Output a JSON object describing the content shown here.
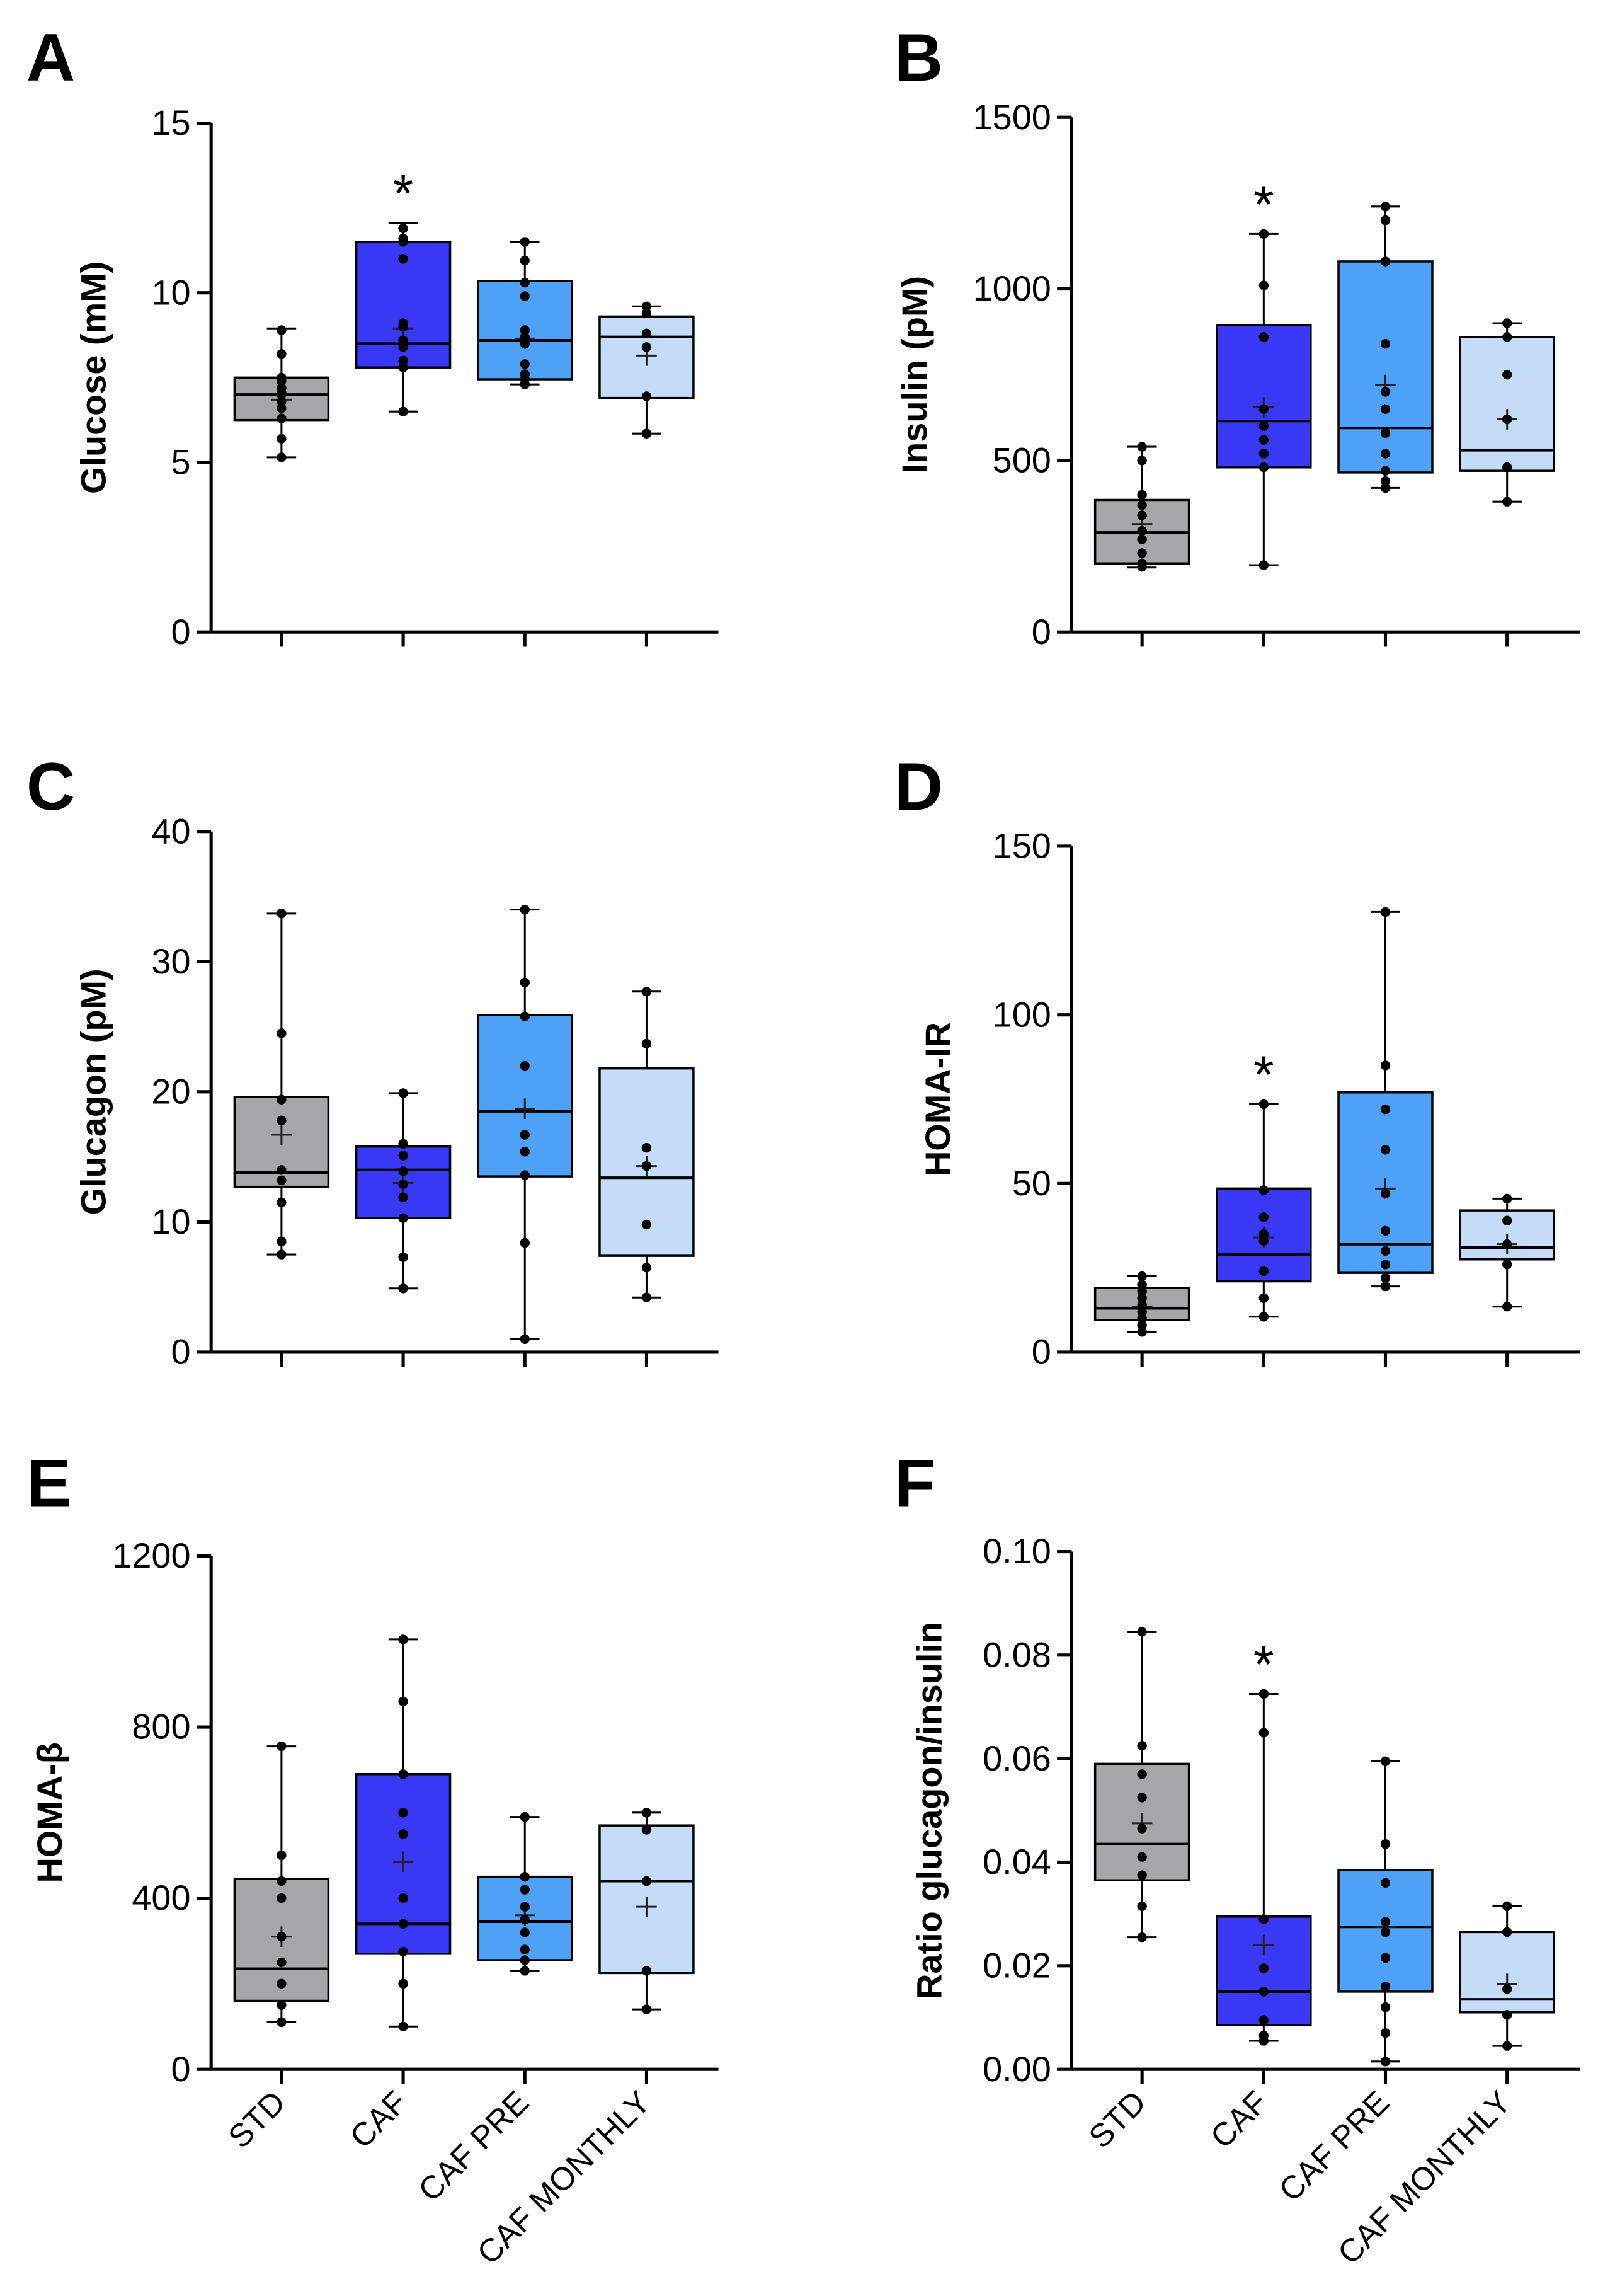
{
  "categories": [
    "STD",
    "CAF",
    "CAF PRE",
    "CAF MONTHLY"
  ],
  "colors": {
    "STD": "#a6a6a8",
    "CAF": "#3838f5",
    "CAF PRE": "#4da2f7",
    "CAF MONTHLY": "#c4dcf7",
    "axis": "#000000"
  },
  "chart_data": [
    {
      "panel": "A",
      "type": "box",
      "ylabel": "Glucose (mM)",
      "ylim": [
        0,
        15
      ],
      "yticks": [
        0,
        5,
        10,
        15
      ],
      "ytick_labels": [
        "0",
        "5",
        "10",
        "15"
      ],
      "categories": [
        "STD",
        "CAF",
        "CAF PRE",
        "CAF MONTHLY"
      ],
      "significance": [
        "",
        "*",
        "",
        ""
      ],
      "boxes": [
        {
          "group": "STD",
          "min": 5.15,
          "q1": 6.25,
          "median": 7.0,
          "q3": 7.5,
          "max": 8.95,
          "mean": 6.85,
          "points": [
            5.15,
            5.7,
            6.3,
            6.6,
            6.8,
            7.0,
            7.05,
            7.2,
            7.4,
            7.5,
            8.2,
            8.9
          ]
        },
        {
          "group": "CAF",
          "min": 6.5,
          "q1": 7.8,
          "median": 8.5,
          "q3": 11.5,
          "max": 12.05,
          "mean": 8.95,
          "points": [
            6.5,
            7.8,
            8.0,
            8.4,
            8.6,
            9.0,
            9.1,
            11.0,
            11.5,
            11.6,
            11.9
          ]
        },
        {
          "group": "CAF PRE",
          "min": 7.3,
          "q1": 7.45,
          "median": 8.6,
          "q3": 10.35,
          "max": 11.5,
          "mean": 8.65,
          "points": [
            7.3,
            7.45,
            7.6,
            7.9,
            8.5,
            8.7,
            8.9,
            9.9,
            10.3,
            10.95,
            11.5
          ]
        },
        {
          "group": "CAF MONTHLY",
          "min": 5.85,
          "q1": 6.9,
          "median": 8.7,
          "q3": 9.3,
          "max": 9.6,
          "mean": 8.15,
          "points": [
            5.85,
            6.95,
            8.4,
            8.8,
            9.4,
            9.6
          ]
        }
      ]
    },
    {
      "panel": "B",
      "type": "box",
      "ylabel": "Insulin (pM)",
      "ylim": [
        0,
        1500
      ],
      "yticks": [
        0,
        500,
        1000,
        1500
      ],
      "ytick_labels": [
        "0",
        "500",
        "1000",
        "1500"
      ],
      "categories": [
        "STD",
        "CAF",
        "CAF PRE",
        "CAF MONTHLY"
      ],
      "significance": [
        "",
        "*",
        "",
        ""
      ],
      "boxes": [
        {
          "group": "STD",
          "min": 188,
          "q1": 200,
          "median": 290,
          "q3": 385,
          "max": 540,
          "mean": 315,
          "points": [
            190,
            200,
            230,
            270,
            295,
            340,
            370,
            400,
            500,
            540
          ]
        },
        {
          "group": "CAF",
          "min": 195,
          "q1": 480,
          "median": 615,
          "q3": 895,
          "max": 1160,
          "mean": 655,
          "points": [
            195,
            480,
            520,
            560,
            600,
            650,
            860,
            1010,
            1160
          ]
        },
        {
          "group": "CAF PRE",
          "min": 420,
          "q1": 465,
          "median": 595,
          "q3": 1080,
          "max": 1240,
          "mean": 720,
          "points": [
            420,
            440,
            470,
            520,
            580,
            650,
            700,
            840,
            1080,
            1200,
            1240
          ]
        },
        {
          "group": "CAF MONTHLY",
          "min": 380,
          "q1": 470,
          "median": 530,
          "q3": 860,
          "max": 900,
          "mean": 620,
          "points": [
            380,
            480,
            620,
            750,
            860,
            900
          ]
        }
      ]
    },
    {
      "panel": "C",
      "type": "box",
      "ylabel": "Glucagon (pM)",
      "ylim": [
        0,
        40
      ],
      "yticks": [
        0,
        10,
        20,
        30,
        40
      ],
      "ytick_labels": [
        "0",
        "10",
        "20",
        "30",
        "40"
      ],
      "categories": [
        "STD",
        "CAF",
        "CAF PRE",
        "CAF MONTHLY"
      ],
      "significance": [
        "",
        "",
        "",
        ""
      ],
      "boxes": [
        {
          "group": "STD",
          "min": 7.5,
          "q1": 12.7,
          "median": 13.8,
          "q3": 19.6,
          "max": 33.7,
          "mean": 16.7,
          "points": [
            7.5,
            8.5,
            11.5,
            13.2,
            14.0,
            17.8,
            19.4,
            24.5,
            33.7
          ]
        },
        {
          "group": "CAF",
          "min": 4.9,
          "q1": 10.3,
          "median": 14.0,
          "q3": 15.8,
          "max": 19.9,
          "mean": 13.0,
          "points": [
            4.9,
            7.3,
            10.3,
            11.9,
            12.9,
            13.9,
            15.1,
            16.0,
            19.9
          ]
        },
        {
          "group": "CAF PRE",
          "min": 1.0,
          "q1": 13.5,
          "median": 18.5,
          "q3": 25.9,
          "max": 34.0,
          "mean": 18.7,
          "points": [
            1.0,
            8.4,
            13.6,
            15.4,
            16.7,
            22.0,
            25.8,
            28.4,
            34.0
          ]
        },
        {
          "group": "CAF MONTHLY",
          "min": 4.2,
          "q1": 7.4,
          "median": 13.4,
          "q3": 21.8,
          "max": 27.7,
          "mean": 14.3,
          "points": [
            4.2,
            6.5,
            9.8,
            14.3,
            15.7,
            23.7,
            27.7
          ]
        }
      ]
    },
    {
      "panel": "D",
      "type": "box",
      "ylabel": "HOMA-IR",
      "ylim": [
        0,
        150
      ],
      "yticks": [
        0,
        50,
        100,
        150
      ],
      "ytick_labels": [
        "0",
        "50",
        "100",
        "150"
      ],
      "categories": [
        "STD",
        "CAF",
        "CAF PRE",
        "CAF MONTHLY"
      ],
      "significance": [
        "",
        "*",
        "",
        ""
      ],
      "boxes": [
        {
          "group": "STD",
          "min": 6,
          "q1": 9.5,
          "median": 13,
          "q3": 19,
          "max": 22.5,
          "mean": 13.5,
          "points": [
            6,
            8,
            10,
            12,
            14,
            16,
            18,
            20,
            22.5
          ]
        },
        {
          "group": "CAF",
          "min": 10.5,
          "q1": 21,
          "median": 29,
          "q3": 48.5,
          "max": 73.5,
          "mean": 34,
          "points": [
            10.5,
            16,
            24,
            33,
            35,
            40,
            48,
            73.5
          ]
        },
        {
          "group": "CAF PRE",
          "min": 19.5,
          "q1": 23.5,
          "median": 32,
          "q3": 77,
          "max": 130.5,
          "mean": 48.5,
          "points": [
            19.5,
            22,
            26,
            30,
            36,
            47,
            60,
            72,
            85,
            130.5
          ]
        },
        {
          "group": "CAF MONTHLY",
          "min": 13.5,
          "q1": 27.5,
          "median": 31,
          "q3": 42,
          "max": 45.5,
          "mean": 32,
          "points": [
            13.5,
            26,
            32,
            39,
            45.5
          ]
        }
      ]
    },
    {
      "panel": "E",
      "type": "box",
      "ylabel": "HOMA-β",
      "ylim": [
        0,
        1200
      ],
      "yticks": [
        0,
        400,
        800,
        1200
      ],
      "ytick_labels": [
        "0",
        "400",
        "800",
        "1200"
      ],
      "categories": [
        "STD",
        "CAF",
        "CAF PRE",
        "CAF MONTHLY"
      ],
      "significance": [
        "",
        "",
        "",
        ""
      ],
      "boxes": [
        {
          "group": "STD",
          "min": 110,
          "q1": 160,
          "median": 235,
          "q3": 445,
          "max": 755,
          "mean": 310,
          "points": [
            110,
            150,
            200,
            250,
            310,
            400,
            440,
            500,
            755
          ]
        },
        {
          "group": "CAF",
          "min": 100,
          "q1": 270,
          "median": 340,
          "q3": 690,
          "max": 1005,
          "mean": 485,
          "points": [
            100,
            200,
            275,
            340,
            400,
            550,
            600,
            690,
            860,
            1005
          ]
        },
        {
          "group": "CAF PRE",
          "min": 230,
          "q1": 255,
          "median": 345,
          "q3": 450,
          "max": 590,
          "mean": 360,
          "points": [
            230,
            255,
            280,
            320,
            350,
            380,
            420,
            450,
            590
          ]
        },
        {
          "group": "CAF MONTHLY",
          "min": 140,
          "q1": 225,
          "median": 440,
          "q3": 570,
          "max": 600,
          "mean": 380,
          "points": [
            140,
            230,
            440,
            560,
            600
          ]
        }
      ]
    },
    {
      "panel": "F",
      "type": "box",
      "ylabel": "Ratio glucagon/insulin",
      "ylim": [
        0,
        0.1
      ],
      "yticks": [
        0,
        0.02,
        0.04,
        0.06,
        0.08,
        0.1
      ],
      "ytick_labels": [
        "0.00",
        "0.02",
        "0.04",
        "0.06",
        "0.08",
        "0.10"
      ],
      "categories": [
        "STD",
        "CAF",
        "CAF PRE",
        "CAF MONTHLY"
      ],
      "significance": [
        "",
        "*",
        "",
        ""
      ],
      "boxes": [
        {
          "group": "STD",
          "min": 0.0255,
          "q1": 0.0365,
          "median": 0.0435,
          "q3": 0.059,
          "max": 0.0845,
          "mean": 0.0475,
          "points": [
            0.0255,
            0.0315,
            0.0375,
            0.041,
            0.0465,
            0.0525,
            0.057,
            0.0625,
            0.0845
          ]
        },
        {
          "group": "CAF",
          "min": 0.0055,
          "q1": 0.0085,
          "median": 0.015,
          "q3": 0.0295,
          "max": 0.0725,
          "mean": 0.024,
          "points": [
            0.0055,
            0.0065,
            0.0095,
            0.015,
            0.0195,
            0.029,
            0.065,
            0.0725
          ]
        },
        {
          "group": "CAF PRE",
          "min": 0.0015,
          "q1": 0.015,
          "median": 0.0275,
          "q3": 0.0385,
          "max": 0.0595,
          "mean": 0.0275,
          "points": [
            0.0015,
            0.007,
            0.012,
            0.016,
            0.0215,
            0.0265,
            0.0285,
            0.036,
            0.0435,
            0.0595
          ]
        },
        {
          "group": "CAF MONTHLY",
          "min": 0.0045,
          "q1": 0.011,
          "median": 0.0135,
          "q3": 0.0265,
          "max": 0.0315,
          "mean": 0.0165,
          "points": [
            0.0045,
            0.0105,
            0.0155,
            0.0265,
            0.0315
          ]
        }
      ]
    }
  ]
}
